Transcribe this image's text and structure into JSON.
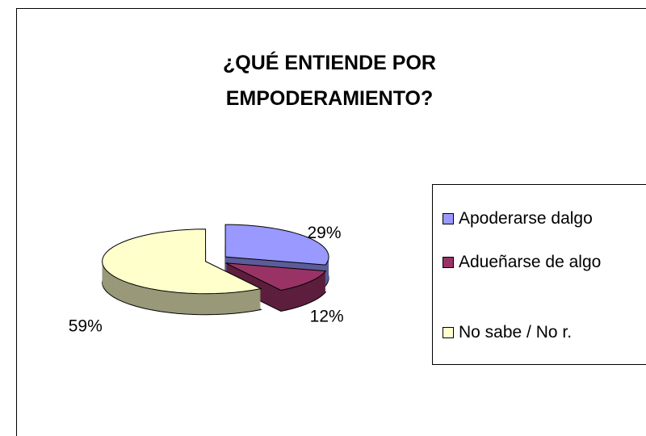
{
  "chart_data": {
    "type": "pie",
    "title": "¿QUÉ ENTIENDE POR EMPODERAMIENTO?",
    "categories": [
      "Apoderarse dalgo",
      "Adueñarse de algo",
      "No sabe / No r."
    ],
    "values": [
      29,
      12,
      59
    ],
    "value_labels": [
      "29%",
      "12%",
      "59%"
    ],
    "colors": [
      "#9999ff",
      "#993366",
      "#ffffcc"
    ],
    "three_d": true,
    "legend": "right"
  }
}
